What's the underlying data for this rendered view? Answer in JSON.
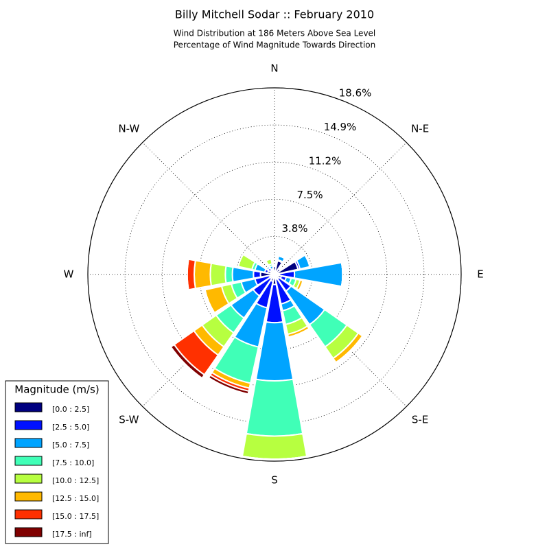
{
  "chart_data": {
    "type": "windrose",
    "title": "Billy Mitchell Sodar :: February 2010",
    "subtitle": "Wind Distribution at 186 Meters Above Sea Level",
    "subtitle2": "Percentage of Wind Magnitude Towards Direction",
    "categories": [
      "N",
      null,
      "N-E",
      null,
      "E",
      null,
      "S-E",
      null,
      "S",
      null,
      "S-W",
      null,
      "W",
      null,
      "N-W",
      null
    ],
    "rlim": [
      0,
      18.6
    ],
    "rticks": [
      {
        "value": 3.8,
        "label": "3.8%"
      },
      {
        "value": 7.5,
        "label": "7.5%"
      },
      {
        "value": 11.2,
        "label": "11.2%"
      },
      {
        "value": 14.9,
        "label": "14.9%"
      },
      {
        "value": 18.6,
        "label": "18.6%"
      }
    ],
    "grid": true,
    "legend_title": "Magnitude (m/s)",
    "legend": "lower left",
    "series": [
      {
        "name": "[0.0 : 2.5]",
        "color": "#000080",
        "values": [
          0.8,
          1.4,
          0.7,
          2.4,
          0.5,
          0.7,
          0.5,
          0.5,
          1.0,
          0.7,
          0.5,
          0.5,
          1.4,
          0.7,
          0.5,
          0.5
        ]
      },
      {
        "name": "[2.5 : 5.0]",
        "color": "#0010ff",
        "values": [
          0.1,
          0.1,
          0.1,
          0.2,
          1.5,
          0.5,
          1.5,
          2.5,
          3.8,
          2.7,
          2.1,
          1.5,
          0.7,
          0.3,
          0.3,
          0.1
        ]
      },
      {
        "name": "[5.0 : 7.5]",
        "color": "#00a4ff",
        "values": [
          0.1,
          0.4,
          0.1,
          1.0,
          4.8,
          0.5,
          4.1,
          0.7,
          5.8,
          4.0,
          2.7,
          1.4,
          2.1,
          1.0,
          0.2,
          0.3
        ]
      },
      {
        "name": "[7.5 : 10.0]",
        "color": "#40ffb7",
        "values": [
          0,
          0,
          0,
          0,
          0,
          0.5,
          2.7,
          1.4,
          5.5,
          3.7,
          1.8,
          1.0,
          0.7,
          0.3,
          0,
          0.2
        ]
      },
      {
        "name": "[10.0 : 12.5]",
        "color": "#b7ff40",
        "values": [
          0,
          0,
          0,
          0,
          0,
          0.4,
          1.4,
          1.0,
          2.3,
          0,
          1.7,
          1.0,
          1.5,
          1.4,
          0,
          0.5
        ]
      },
      {
        "name": "[12.5 : 15.0]",
        "color": "#ffb900",
        "values": [
          0,
          0,
          0,
          0,
          0,
          0.3,
          0.5,
          0.3,
          0,
          0.5,
          1.0,
          1.7,
          1.6,
          0,
          0,
          0
        ]
      },
      {
        "name": "[15.0 : 17.5]",
        "color": "#ff3000",
        "values": [
          0,
          0,
          0,
          0,
          0,
          0,
          0,
          0,
          0,
          0.3,
          2.4,
          0,
          0.7,
          0,
          0,
          0
        ]
      },
      {
        "name": "[17.5 : inf]",
        "color": "#800000",
        "values": [
          0,
          0,
          0,
          0,
          0,
          0,
          0,
          0,
          0,
          0.3,
          0.4,
          0,
          0,
          0,
          0,
          0
        ]
      }
    ]
  }
}
